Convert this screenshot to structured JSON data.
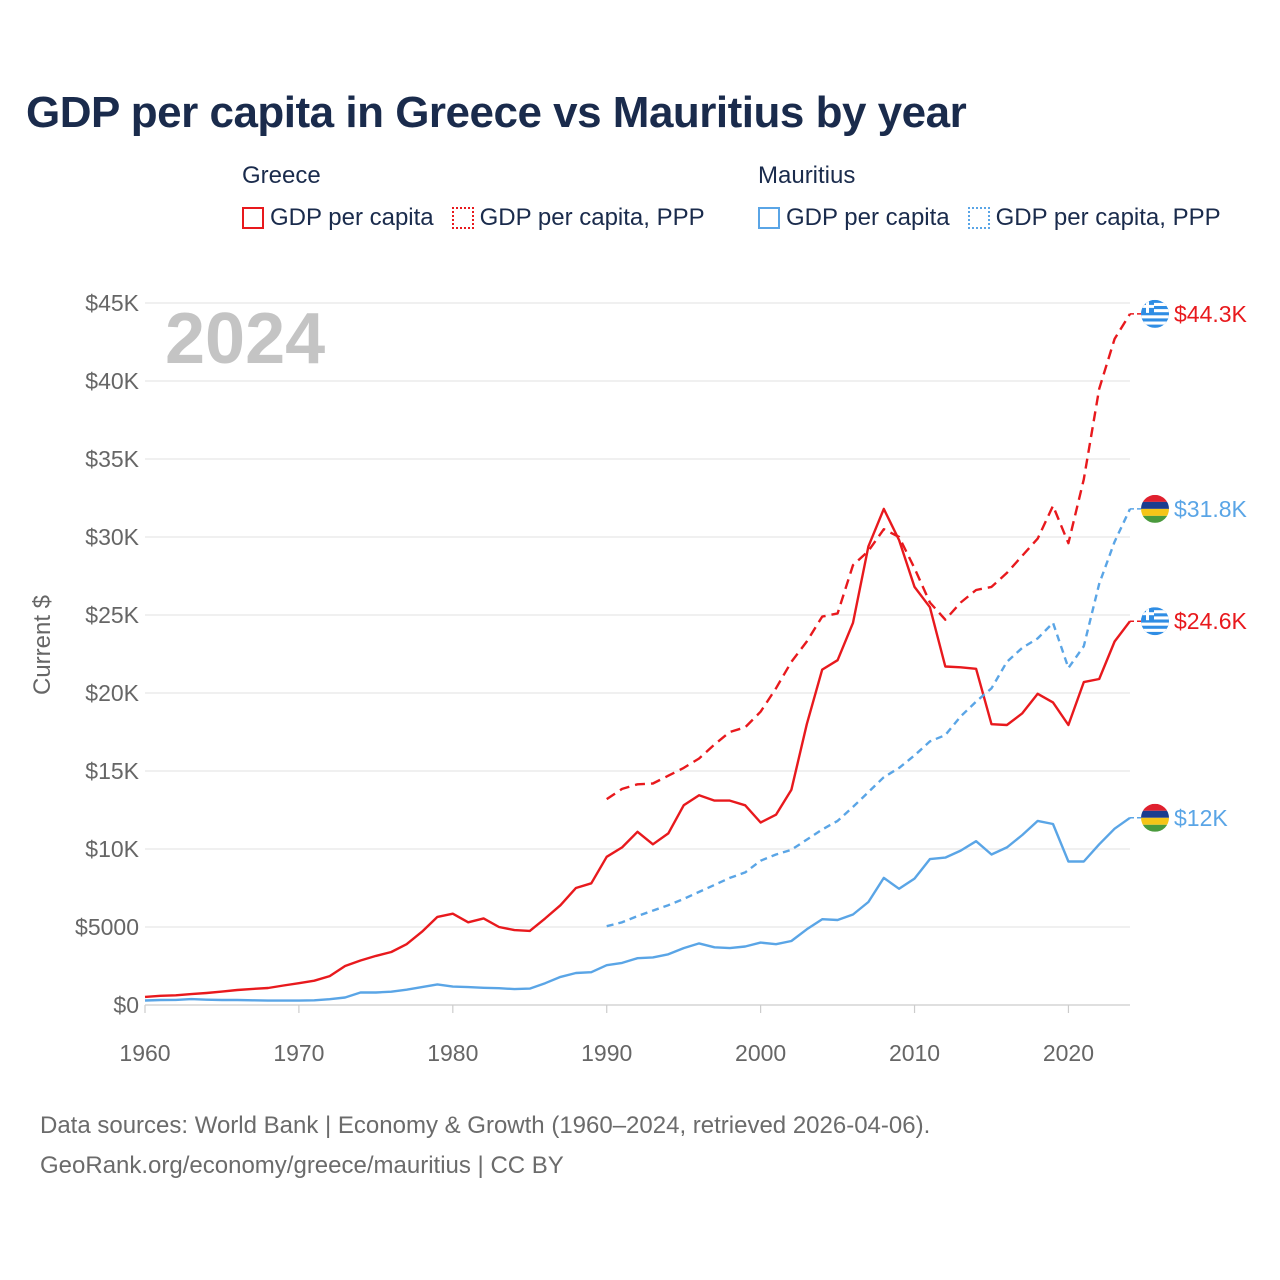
{
  "title": "GDP per capita in Greece vs Mauritius by year",
  "legend": {
    "groups": [
      {
        "name": "Greece",
        "items": [
          {
            "label": "GDP per capita",
            "color": "#e8191d",
            "style": "solid"
          },
          {
            "label": "GDP per capita, PPP",
            "color": "#e8191d",
            "style": "dotted"
          }
        ]
      },
      {
        "name": "Mauritius",
        "items": [
          {
            "label": "GDP per capita",
            "color": "#5aa5e6",
            "style": "solid"
          },
          {
            "label": "GDP per capita, PPP",
            "color": "#5aa5e6",
            "style": "dotted"
          }
        ]
      }
    ]
  },
  "year_watermark": "2024",
  "footer": {
    "line1": "Data sources: World Bank | Economy & Growth (1960–2024, retrieved 2026-04-06).",
    "line2": "GeoRank.org/economy/greece/mauritius | CC BY"
  },
  "chart_data": {
    "type": "line",
    "title": "GDP per capita in Greece vs Mauritius by year",
    "xlabel": "",
    "ylabel": "Current $",
    "xlim": [
      1960,
      2024
    ],
    "ylim": [
      0,
      45000
    ],
    "x_ticks": [
      1960,
      1970,
      1980,
      1990,
      2000,
      2010,
      2020
    ],
    "x_tick_labels": [
      "1960",
      "1970",
      "1980",
      "1990",
      "2000",
      "2010",
      "2020"
    ],
    "y_ticks": [
      0,
      5000,
      10000,
      15000,
      20000,
      25000,
      30000,
      35000,
      40000,
      45000
    ],
    "y_tick_labels": [
      "$0",
      "$5000",
      "$10K",
      "$15K",
      "$20K",
      "$25K",
      "$30K",
      "$35K",
      "$40K",
      "$45K"
    ],
    "grid": true,
    "series": [
      {
        "name": "Greece GDP per capita",
        "color": "#e8191d",
        "dash": "solid",
        "flag": "greece",
        "end_label": "$24.6K",
        "x_start": 1960,
        "values": [
          520,
          590,
          620,
          700,
          770,
          860,
          960,
          1030,
          1090,
          1250,
          1400,
          1560,
          1850,
          2500,
          2850,
          3150,
          3400,
          3900,
          4700,
          5650,
          5850,
          5300,
          5550,
          5000,
          4800,
          4750,
          5550,
          6400,
          7500,
          7800,
          9500,
          10100,
          11100,
          10300,
          11000,
          12800,
          13450,
          13100,
          13100,
          12800,
          11700,
          12200,
          13800,
          18000,
          21500,
          22100,
          24500,
          29400,
          31800,
          29800,
          26800,
          25500,
          21700,
          21650,
          21550,
          18000,
          17950,
          18700,
          19950,
          19400,
          17950,
          20700,
          20900,
          23300,
          24600
        ]
      },
      {
        "name": "Greece GDP per capita, PPP",
        "color": "#e8191d",
        "dash": "dashed",
        "flag": "greece",
        "end_label": "$44.3K",
        "x_start": 1990,
        "values": [
          13200,
          13850,
          14150,
          14200,
          14700,
          15200,
          15800,
          16700,
          17500,
          17800,
          18800,
          20300,
          22000,
          23300,
          24900,
          25100,
          28200,
          29100,
          30500,
          30000,
          28000,
          25800,
          24700,
          25800,
          26600,
          26800,
          27700,
          28800,
          29900,
          32000,
          29600,
          33700,
          39500,
          42700,
          44300
        ]
      },
      {
        "name": "Mauritius GDP per capita",
        "color": "#5aa5e6",
        "dash": "solid",
        "flag": "mauritius",
        "end_label": "$12K",
        "x_start": 1960,
        "values": [
          290,
          320,
          330,
          380,
          340,
          320,
          320,
          300,
          280,
          280,
          280,
          300,
          370,
          480,
          800,
          800,
          850,
          980,
          1150,
          1320,
          1180,
          1150,
          1100,
          1080,
          1020,
          1050,
          1400,
          1800,
          2050,
          2100,
          2550,
          2700,
          3000,
          3050,
          3250,
          3650,
          3950,
          3700,
          3650,
          3750,
          4000,
          3900,
          4100,
          4850,
          5500,
          5450,
          5800,
          6600,
          8150,
          7450,
          8100,
          9350,
          9450,
          9900,
          10500,
          9650,
          10100,
          10900,
          11800,
          11600,
          9200,
          9200,
          10300,
          11300,
          12000
        ]
      },
      {
        "name": "Mauritius GDP per capita, PPP",
        "color": "#5aa5e6",
        "dash": "dotted",
        "flag": "mauritius",
        "end_label": "$31.8K",
        "x_start": 1990,
        "values": [
          5050,
          5300,
          5700,
          6050,
          6400,
          6800,
          7250,
          7700,
          8150,
          8500,
          9250,
          9650,
          9950,
          10600,
          11250,
          11800,
          12700,
          13650,
          14600,
          15200,
          16000,
          16900,
          17300,
          18500,
          19450,
          20300,
          22000,
          22900,
          23500,
          24500,
          21600,
          23000,
          27000,
          29700,
          31800
        ]
      }
    ]
  }
}
